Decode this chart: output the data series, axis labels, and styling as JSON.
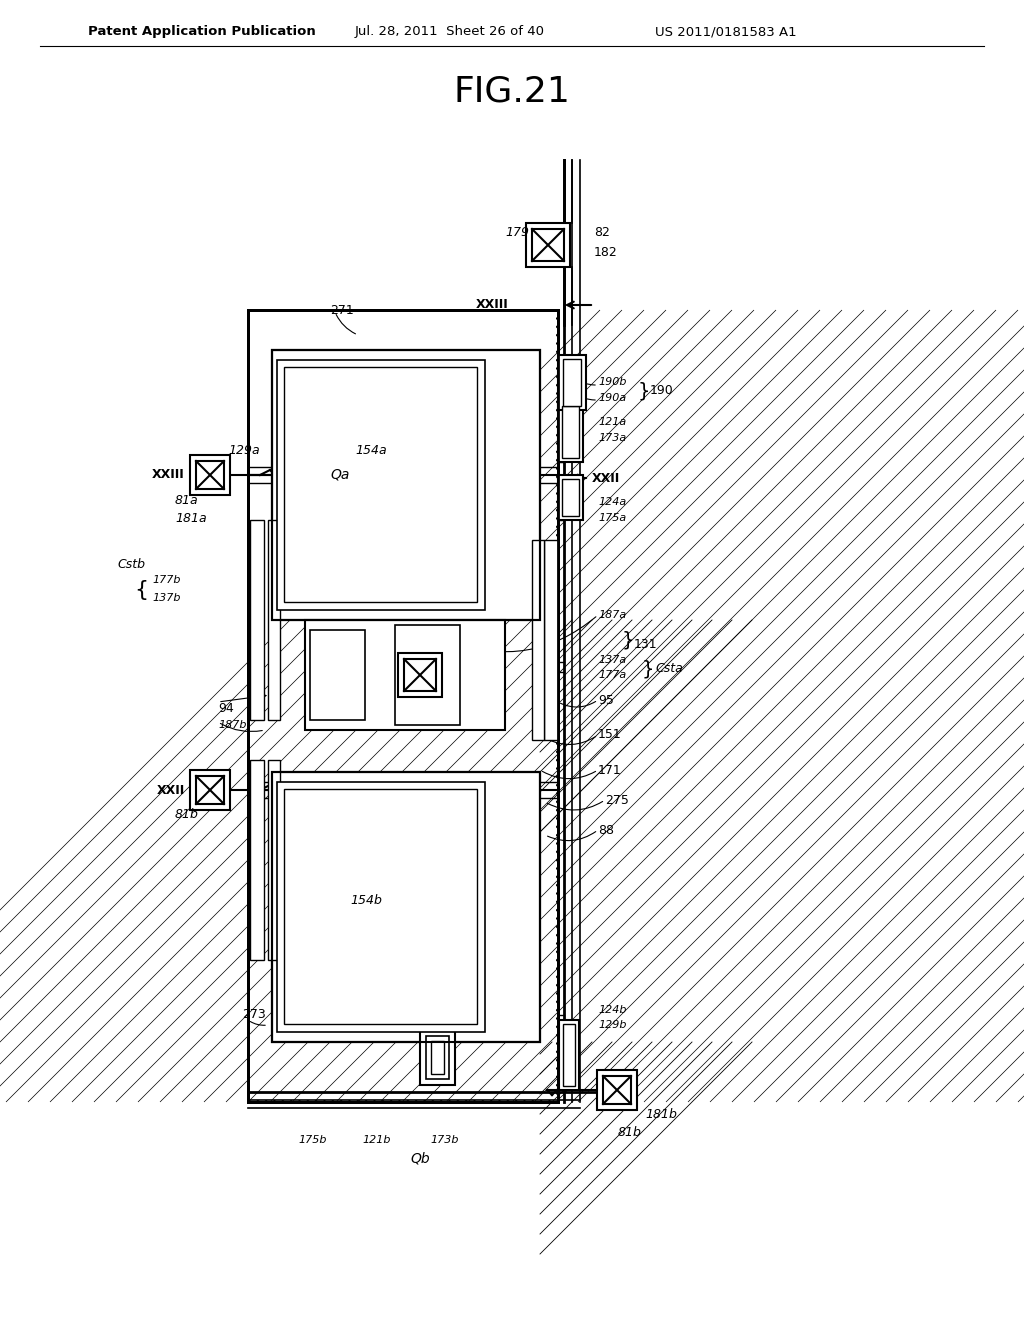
{
  "title": "FIG.21",
  "header_left": "Patent Application Publication",
  "header_mid": "Jul. 28, 2011  Sheet 26 of 40",
  "header_right": "US 2011/0181583 A1",
  "background_color": "#ffffff"
}
